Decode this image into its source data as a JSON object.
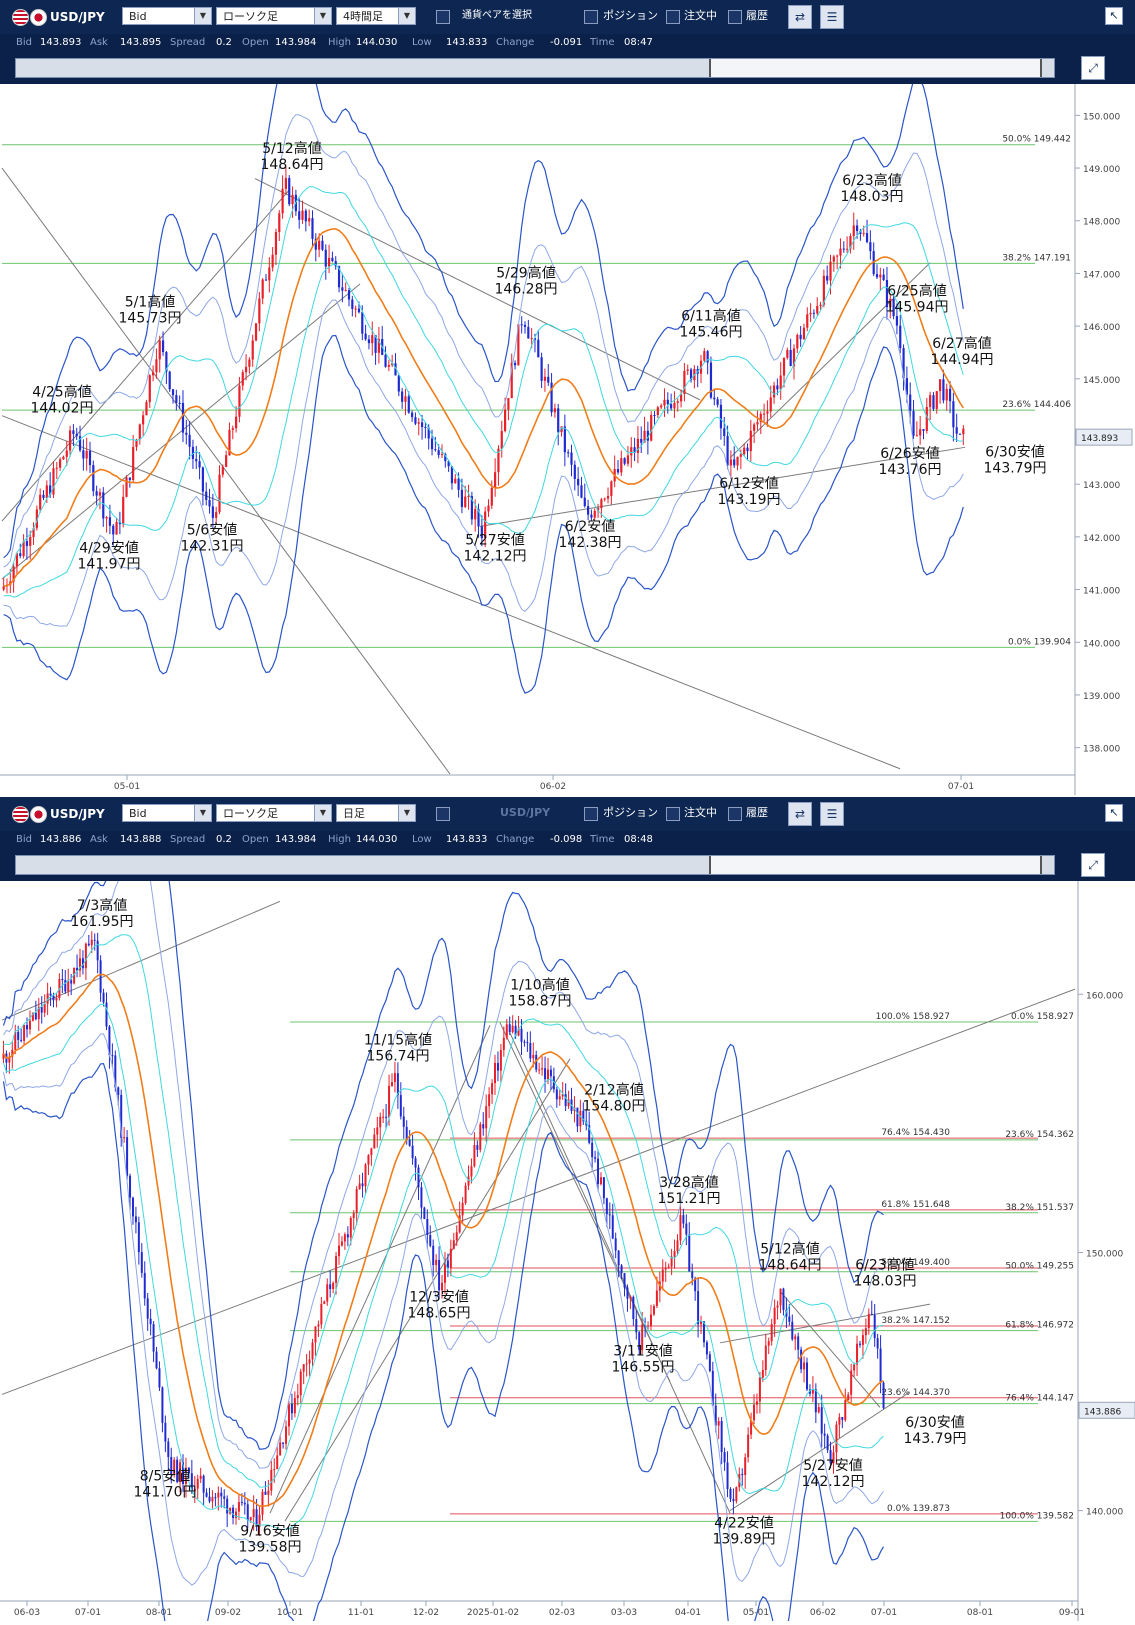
{
  "top": {
    "toolbar": {
      "pair": "USD/JPY",
      "price_type": "Bid",
      "chart_type": "ローソク足",
      "timeframe": "4時間足",
      "currency_select": "通貨ペアを選択",
      "position": "ポジション",
      "orders": "注文中",
      "history": "履歴"
    },
    "quote": {
      "bid_label": "Bid",
      "bid": "143.893",
      "ask_label": "Ask",
      "ask": "143.895",
      "spread_label": "Spread",
      "spread": "0.2",
      "open_label": "Open",
      "open": "143.984",
      "high_label": "High",
      "high": "144.030",
      "low_label": "Low",
      "low": "143.833",
      "change_label": "Change",
      "change": "-0.091",
      "time_label": "Time",
      "time": "08:47"
    },
    "price_ticks": [
      "150.000",
      "149.000",
      "148.000",
      "147.000",
      "146.000",
      "145.000",
      "144.000",
      "143.000",
      "142.000",
      "141.000",
      "140.000",
      "139.000",
      "138.000"
    ],
    "x_ticks": [
      "05-01",
      "06-02",
      "07-01"
    ],
    "current_price": "143.893",
    "fib_labels": [
      {
        "text": "50.0%  149.442",
        "price": 149.442
      },
      {
        "text": "38.2%  147.191",
        "price": 147.191
      },
      {
        "text": "23.6%  144.406",
        "price": 144.406
      },
      {
        "text": "0.0%  139.904",
        "price": 139.904
      }
    ],
    "annotations": [
      {
        "label": "5/12高値",
        "value": "148.64円",
        "price": 148.64,
        "pos": "above"
      },
      {
        "label": "5/1高値",
        "value": "145.73円",
        "price": 145.73,
        "pos": "above"
      },
      {
        "label": "4/25高値",
        "value": "144.02円",
        "price": 144.02,
        "pos": "above"
      },
      {
        "label": "5/29高値",
        "value": "146.28円",
        "price": 146.28,
        "pos": "above"
      },
      {
        "label": "6/23高値",
        "value": "148.03円",
        "price": 148.03,
        "pos": "above"
      },
      {
        "label": "6/11高値",
        "value": "145.46円",
        "price": 145.46,
        "pos": "above"
      },
      {
        "label": "6/25高値",
        "value": "145.94円",
        "price": 145.94,
        "pos": "above"
      },
      {
        "label": "6/27高値",
        "value": "144.94円",
        "price": 144.94,
        "pos": "above"
      },
      {
        "label": "4/29安値",
        "value": "141.97円",
        "price": 141.97,
        "pos": "below"
      },
      {
        "label": "5/6安値",
        "value": "142.31円",
        "price": 142.31,
        "pos": "below"
      },
      {
        "label": "5/27安値",
        "value": "142.12円",
        "price": 142.12,
        "pos": "below"
      },
      {
        "label": "6/2安値",
        "value": "142.38円",
        "price": 142.38,
        "pos": "below"
      },
      {
        "label": "6/12安値",
        "value": "143.19円",
        "price": 143.19,
        "pos": "below"
      },
      {
        "label": "6/26安値",
        "value": "143.76円",
        "price": 143.76,
        "pos": "below"
      },
      {
        "label": "6/30安値",
        "value": "143.79円",
        "price": 143.79,
        "pos": "below"
      }
    ]
  },
  "bottom": {
    "toolbar": {
      "pair": "USD/JPY",
      "price_type": "Bid",
      "chart_type": "ローソク足",
      "timeframe": "日足",
      "pair2": "USD/JPY",
      "position": "ポジション",
      "orders": "注文中",
      "history": "履歴"
    },
    "quote": {
      "bid_label": "Bid",
      "bid": "143.886",
      "ask_label": "Ask",
      "ask": "143.888",
      "spread_label": "Spread",
      "spread": "0.2",
      "open_label": "Open",
      "open": "143.984",
      "high_label": "High",
      "high": "144.030",
      "low_label": "Low",
      "low": "143.833",
      "change_label": "Change",
      "change": "-0.098",
      "time_label": "Time",
      "time": "08:48"
    },
    "price_ticks": [
      "160.000",
      "150.000",
      "140.000"
    ],
    "x_ticks": [
      "06-03",
      "07-01",
      "08-01",
      "09-02",
      "10-01",
      "11-01",
      "12-02",
      "2025-01-02",
      "02-03",
      "03-03",
      "04-01",
      "05-01",
      "06-02",
      "07-01",
      "08-01",
      "09-01"
    ],
    "current_price": "143.886",
    "fib_labels": [
      {
        "text": "100.0%  158.927",
        "price": 158.927,
        "side": "left"
      },
      {
        "text": "0.0%  158.927",
        "price": 158.927,
        "side": "right"
      },
      {
        "text": "76.4%  154.430",
        "price": 154.43,
        "side": "left"
      },
      {
        "text": "23.6%  154.362",
        "price": 154.362,
        "side": "right"
      },
      {
        "text": "61.8%  151.648",
        "price": 151.648,
        "side": "left"
      },
      {
        "text": "38.2%  151.537",
        "price": 151.537,
        "side": "right"
      },
      {
        "text": "50.0%  149.400",
        "price": 149.4,
        "side": "left"
      },
      {
        "text": "50.0%  149.255",
        "price": 149.255,
        "side": "right"
      },
      {
        "text": "38.2%  147.152",
        "price": 147.152,
        "side": "left"
      },
      {
        "text": "61.8%  146.972",
        "price": 146.972,
        "side": "right"
      },
      {
        "text": "23.6%  144.370",
        "price": 144.37,
        "side": "left"
      },
      {
        "text": "76.4%  144.147",
        "price": 144.147,
        "side": "right"
      },
      {
        "text": "0.0%  139.873",
        "price": 139.873,
        "side": "left"
      },
      {
        "text": "100.0%  139.582",
        "price": 139.582,
        "side": "right"
      }
    ],
    "annotations": [
      {
        "label": "7/3高値",
        "value": "161.95円",
        "price": 161.95,
        "pos": "above"
      },
      {
        "label": "1/10高値",
        "value": "158.87円",
        "price": 158.87,
        "pos": "above"
      },
      {
        "label": "11/15高値",
        "value": "156.74円",
        "price": 156.74,
        "pos": "above"
      },
      {
        "label": "2/12高値",
        "value": "154.80円",
        "price": 154.8,
        "pos": "above"
      },
      {
        "label": "3/28高値",
        "value": "151.21円",
        "price": 151.21,
        "pos": "above"
      },
      {
        "label": "5/12高値",
        "value": "148.64円",
        "price": 148.64,
        "pos": "above"
      },
      {
        "label": "6/23高値",
        "value": "148.03円",
        "price": 148.03,
        "pos": "above"
      },
      {
        "label": "12/3安値",
        "value": "148.65円",
        "price": 148.65,
        "pos": "below"
      },
      {
        "label": "3/11安値",
        "value": "146.55円",
        "price": 146.55,
        "pos": "below"
      },
      {
        "label": "8/5安値",
        "value": "141.70円",
        "price": 141.7,
        "pos": "below"
      },
      {
        "label": "9/16安値",
        "value": "139.58円",
        "price": 139.58,
        "pos": "below"
      },
      {
        "label": "4/22安値",
        "value": "139.89円",
        "price": 139.89,
        "pos": "below"
      },
      {
        "label": "5/27安値",
        "value": "142.12円",
        "price": 142.12,
        "pos": "below"
      },
      {
        "label": "6/30安値",
        "value": "143.79円",
        "price": 143.79,
        "pos": "below"
      }
    ]
  },
  "chart_data": [
    {
      "type": "candlestick",
      "title": "USD/JPY 4時間足",
      "x_range": [
        "2025-04-18",
        "2025-07-01"
      ],
      "ylim": [
        137.5,
        150.5
      ],
      "key_points": [
        {
          "date": "4/25",
          "kind": "high",
          "value": 144.02
        },
        {
          "date": "4/29",
          "kind": "low",
          "value": 141.97
        },
        {
          "date": "5/1",
          "kind": "high",
          "value": 145.73
        },
        {
          "date": "5/6",
          "kind": "low",
          "value": 142.31
        },
        {
          "date": "5/12",
          "kind": "high",
          "value": 148.64
        },
        {
          "date": "5/27",
          "kind": "low",
          "value": 142.12
        },
        {
          "date": "5/29",
          "kind": "high",
          "value": 146.28
        },
        {
          "date": "6/2",
          "kind": "low",
          "value": 142.38
        },
        {
          "date": "6/11",
          "kind": "high",
          "value": 145.46
        },
        {
          "date": "6/12",
          "kind": "low",
          "value": 143.19
        },
        {
          "date": "6/23",
          "kind": "high",
          "value": 148.03
        },
        {
          "date": "6/25",
          "kind": "high",
          "value": 145.94
        },
        {
          "date": "6/26",
          "kind": "low",
          "value": 143.76
        },
        {
          "date": "6/27",
          "kind": "high",
          "value": 144.94
        },
        {
          "date": "6/30",
          "kind": "low",
          "value": 143.79
        }
      ],
      "fibonacci": [
        149.442,
        147.191,
        144.406,
        139.904
      ],
      "last": 143.893
    },
    {
      "type": "candlestick",
      "title": "USD/JPY 日足",
      "x_range": [
        "2024-06-03",
        "2025-09-01"
      ],
      "ylim": [
        136.5,
        164.0
      ],
      "key_points": [
        {
          "date": "7/3",
          "kind": "high",
          "value": 161.95
        },
        {
          "date": "8/5",
          "kind": "low",
          "value": 141.7
        },
        {
          "date": "9/16",
          "kind": "low",
          "value": 139.58
        },
        {
          "date": "11/15",
          "kind": "high",
          "value": 156.74
        },
        {
          "date": "12/3",
          "kind": "low",
          "value": 148.65
        },
        {
          "date": "1/10",
          "kind": "high",
          "value": 158.87
        },
        {
          "date": "2/12",
          "kind": "high",
          "value": 154.8
        },
        {
          "date": "3/11",
          "kind": "low",
          "value": 146.55
        },
        {
          "date": "3/28",
          "kind": "high",
          "value": 151.21
        },
        {
          "date": "4/22",
          "kind": "low",
          "value": 139.89
        },
        {
          "date": "5/12",
          "kind": "high",
          "value": 148.64
        },
        {
          "date": "5/27",
          "kind": "low",
          "value": 142.12
        },
        {
          "date": "6/23",
          "kind": "high",
          "value": 148.03
        },
        {
          "date": "6/30",
          "kind": "low",
          "value": 143.79
        }
      ],
      "fibonacci_left": [
        158.927,
        154.43,
        151.648,
        149.4,
        147.152,
        144.37,
        139.873
      ],
      "fibonacci_right": [
        158.927,
        154.362,
        151.537,
        149.255,
        146.972,
        144.147,
        139.582
      ],
      "last": 143.886
    }
  ],
  "colors": {
    "toolbar_bg": "#0d2752",
    "bull": "#e8202a",
    "bear": "#1f2bd1",
    "ma": "#f07d1a",
    "bb_outer": "#2a55c8",
    "bb_mid": "#8fa8e6",
    "bb_inner": "#40d8e0",
    "fib_green": "#6cc46c",
    "fib_red": "#e0505a",
    "trend": "#7a7a7a"
  }
}
